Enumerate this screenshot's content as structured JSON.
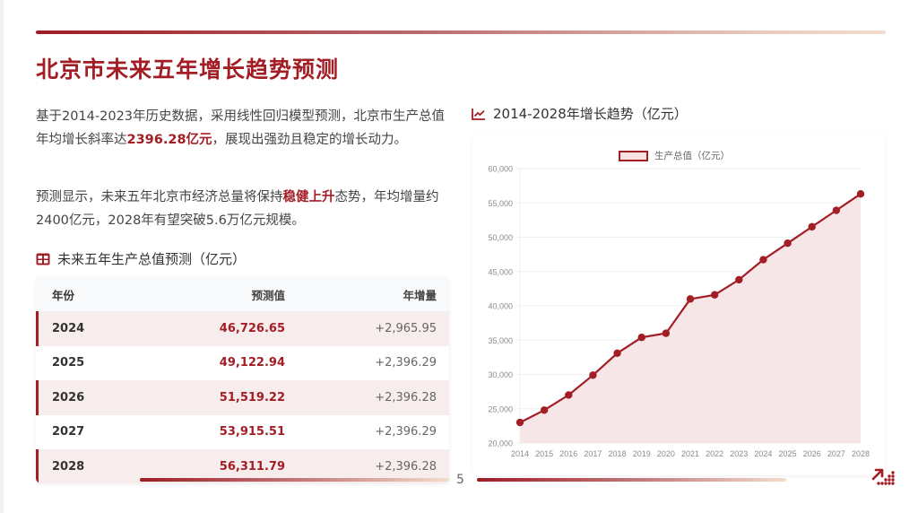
{
  "page": {
    "title": "北京市未来五年增长趋势预测",
    "page_number": "5"
  },
  "intro": {
    "p1_before": "基于2014-2023年历史数据，采用线性回归模型预测，北京市生产总值年均增长斜率达",
    "p1_highlight": "2396.28亿元",
    "p1_after": "，展现出强劲且稳定的增长动力。",
    "p2_before": "预测显示，未来五年北京市经济总量将保持",
    "p2_highlight": "稳健上升",
    "p2_after": "态势，年均增量约2400亿元，2028年有望突破5.6万亿元规模。"
  },
  "table": {
    "icon": "table-icon",
    "heading": "未来五年生产总值预测（亿元）",
    "columns": [
      "年份",
      "预测值",
      "年增量"
    ],
    "rows": [
      {
        "year": "2024",
        "value": "46,726.65",
        "delta": "+2,965.95"
      },
      {
        "year": "2025",
        "value": "49,122.94",
        "delta": "+2,396.29"
      },
      {
        "year": "2026",
        "value": "51,519.22",
        "delta": "+2,396.28"
      },
      {
        "year": "2027",
        "value": "53,915.51",
        "delta": "+2,396.29"
      },
      {
        "year": "2028",
        "value": "56,311.79",
        "delta": "+2,396.28"
      }
    ]
  },
  "chart_section": {
    "icon": "line-chart-icon",
    "heading": "2014-2028年增长趋势（亿元）"
  },
  "colors": {
    "accent": "#a31d25",
    "fill": "#f5e3e4",
    "row_highlight": "#f7eded"
  },
  "chart_data": {
    "type": "area",
    "title": "2014-2028年增长趋势（亿元）",
    "xlabel": "",
    "ylabel": "",
    "legend": [
      "生产总值（亿元）"
    ],
    "legend_position": "top",
    "grid": true,
    "ylim": [
      20000,
      60000
    ],
    "yticks": [
      "20,000",
      "25,000",
      "30,000",
      "35,000",
      "40,000",
      "45,000",
      "50,000",
      "55,000",
      "60,000"
    ],
    "categories": [
      "2014",
      "2015",
      "2016",
      "2017",
      "2018",
      "2019",
      "2020",
      "2021",
      "2022",
      "2023",
      "2024",
      "2025",
      "2026",
      "2027",
      "2028"
    ],
    "series": [
      {
        "name": "生产总值（亿元）",
        "values": [
          23000,
          24800,
          27000,
          29900,
          33100,
          35400,
          36000,
          41000,
          41600,
          43800,
          46726.65,
          49122.94,
          51519.22,
          53915.51,
          56311.79
        ]
      }
    ]
  }
}
